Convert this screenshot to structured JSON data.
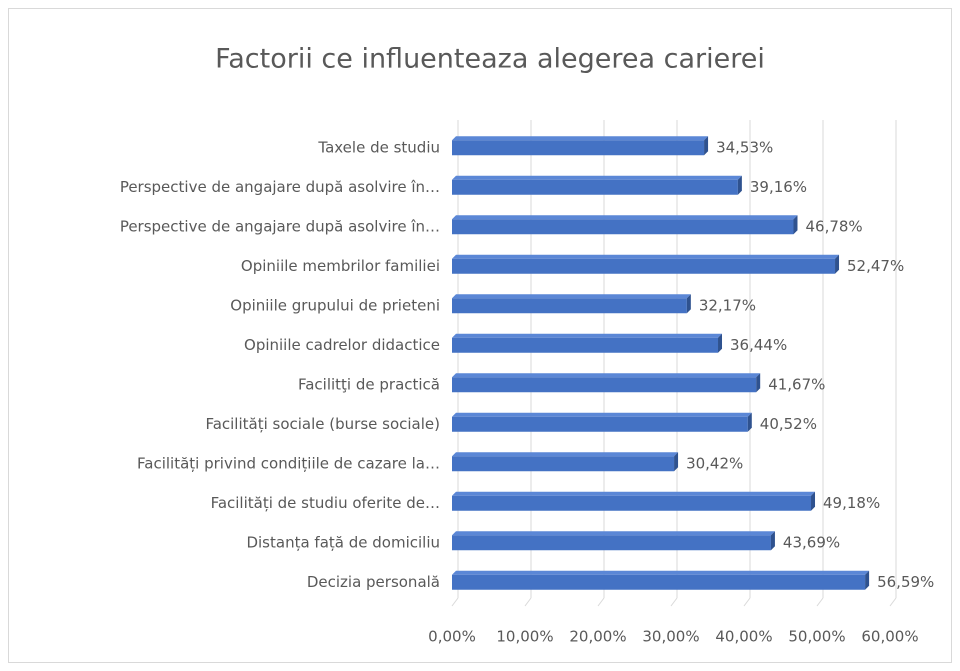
{
  "chart_data": {
    "type": "bar",
    "orientation": "horizontal",
    "title": "Factorii ce influenteaza alegerea carierei",
    "categories": [
      "Taxele de studiu",
      "Perspective de angajare după asolvire în…",
      "Perspective de angajare după asolvire în…",
      "Opiniile membrilor familiei",
      "Opiniile grupului de prieteni",
      "Opiniile cadrelor didactice",
      "Facilitţi de practică",
      "Facilități sociale (burse sociale)",
      "Facilități privind condițiile de cazare la…",
      "Facilități de studiu oferite de…",
      "Distanța față de domiciliu",
      "Decizia personală"
    ],
    "values": [
      34.53,
      39.16,
      46.78,
      52.47,
      32.17,
      36.44,
      41.67,
      40.52,
      30.42,
      49.18,
      43.69,
      56.59
    ],
    "value_labels": [
      "34,53%",
      "39,16%",
      "46,78%",
      "52,47%",
      "32,17%",
      "36,44%",
      "41,67%",
      "40,52%",
      "30,42%",
      "49,18%",
      "43,69%",
      "56,59%"
    ],
    "color": "#4472c4",
    "xlim": [
      0,
      60
    ],
    "xticks": [
      {
        "value": 0,
        "label": "0,00%"
      },
      {
        "value": 10,
        "label": "10,00%"
      },
      {
        "value": 20,
        "label": "20,00%"
      },
      {
        "value": 30,
        "label": "30,00%"
      },
      {
        "value": 40,
        "label": "40,00%"
      },
      {
        "value": 50,
        "label": "50,00%"
      },
      {
        "value": 60,
        "label": "60,00%"
      }
    ],
    "grid": true
  }
}
